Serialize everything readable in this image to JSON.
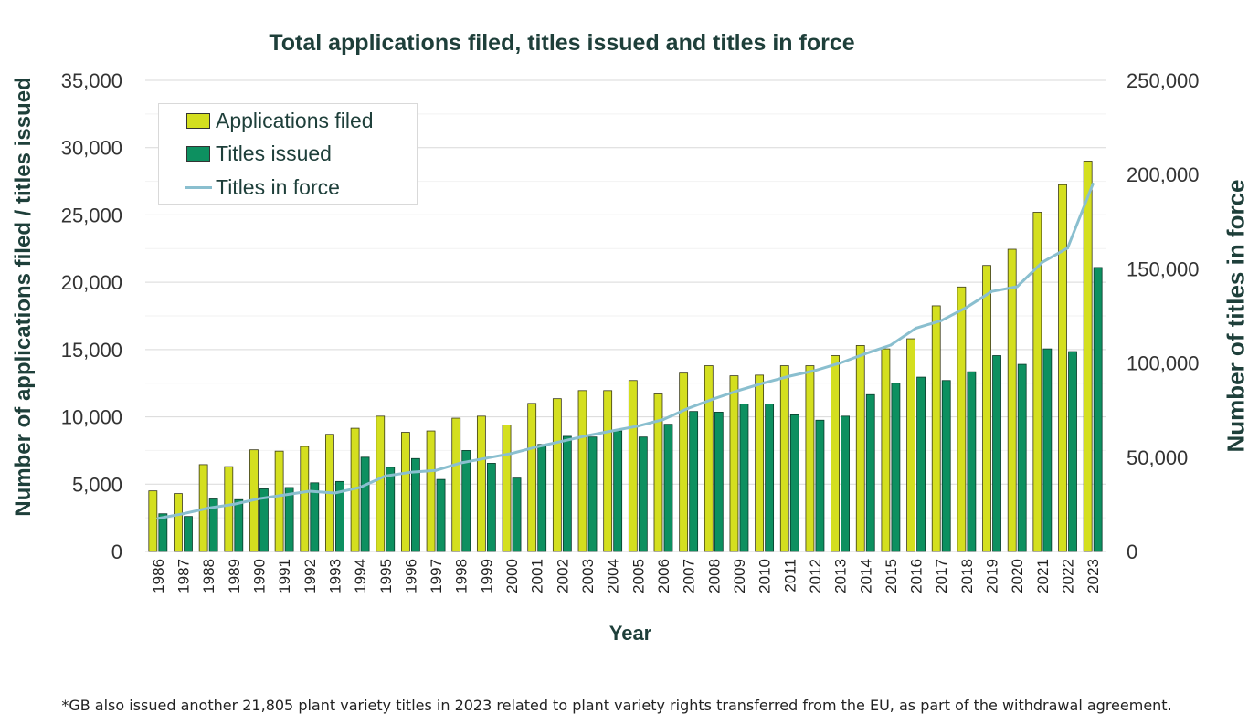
{
  "chart_data": {
    "type": "bar",
    "title": "Total applications filed, titles issued and titles in force",
    "xlabel": "Year",
    "ylabel_left": "Number  of applications filed / titles issued",
    "ylabel_right": "Number of titles in force",
    "ylim_left": [
      0,
      35000
    ],
    "ylim_right": [
      0,
      250000
    ],
    "left_ticks": [
      "0",
      "5,000",
      "10,000",
      "15,000",
      "20,000",
      "25,000",
      "30,000",
      "35,000"
    ],
    "right_ticks": [
      "0",
      "50,000",
      "100,000",
      "150,000",
      "200,000",
      "250,000"
    ],
    "categories": [
      "1986",
      "1987",
      "1988",
      "1989",
      "1990",
      "1991",
      "1992",
      "1993",
      "1994",
      "1995",
      "1996",
      "1997",
      "1998",
      "1999",
      "2000",
      "2001",
      "2002",
      "2003",
      "2004",
      "2005",
      "2006",
      "2007",
      "2008",
      "2009",
      "2010",
      "2011",
      "2012",
      "2013",
      "2014",
      "2015",
      "2016",
      "2017",
      "2018",
      "2019",
      "2020",
      "2021",
      "2022",
      "2023"
    ],
    "series": [
      {
        "name": "Applications filed",
        "type": "bar",
        "axis": "left",
        "color": "#d4df1f",
        "values": [
          4500,
          4300,
          6450,
          6300,
          7550,
          7450,
          7800,
          8700,
          9150,
          10050,
          8850,
          8950,
          9900,
          10050,
          9400,
          11000,
          11350,
          11950,
          11950,
          12700,
          11700,
          13250,
          13800,
          13050,
          13100,
          13800,
          13800,
          14550,
          15300,
          15050,
          15800,
          18250,
          19650,
          21250,
          22450,
          25200,
          27250,
          29000
        ]
      },
      {
        "name": "Titles issued",
        "type": "bar",
        "axis": "left",
        "color": "#0d9060",
        "values": [
          2800,
          2600,
          3900,
          3850,
          4650,
          4750,
          5100,
          5200,
          7000,
          6250,
          6900,
          5350,
          7500,
          6550,
          5450,
          7950,
          8550,
          8500,
          8950,
          8500,
          9450,
          10400,
          10350,
          10950,
          10950,
          10150,
          9750,
          10050,
          11650,
          12500,
          12950,
          12700,
          13350,
          14550,
          13900,
          15050,
          14850,
          21100
        ]
      },
      {
        "name": "Titles in force",
        "type": "line",
        "axis": "right",
        "color": "#8abfcf",
        "values": [
          17500,
          20000,
          23000,
          25000,
          28000,
          30000,
          32000,
          31000,
          34000,
          40000,
          42000,
          43000,
          47000,
          49500,
          52000,
          55500,
          58500,
          61500,
          64000,
          66500,
          70000,
          76000,
          81000,
          85500,
          89500,
          93000,
          96000,
          100000,
          105000,
          109500,
          118500,
          122500,
          129500,
          138000,
          140500,
          153500,
          161000,
          195000
        ]
      }
    ]
  },
  "footnote": "*GB also issued another 21,805 plant variety titles in 2023 related to plant variety rights transferred from the EU, as part of the withdrawal agreement."
}
